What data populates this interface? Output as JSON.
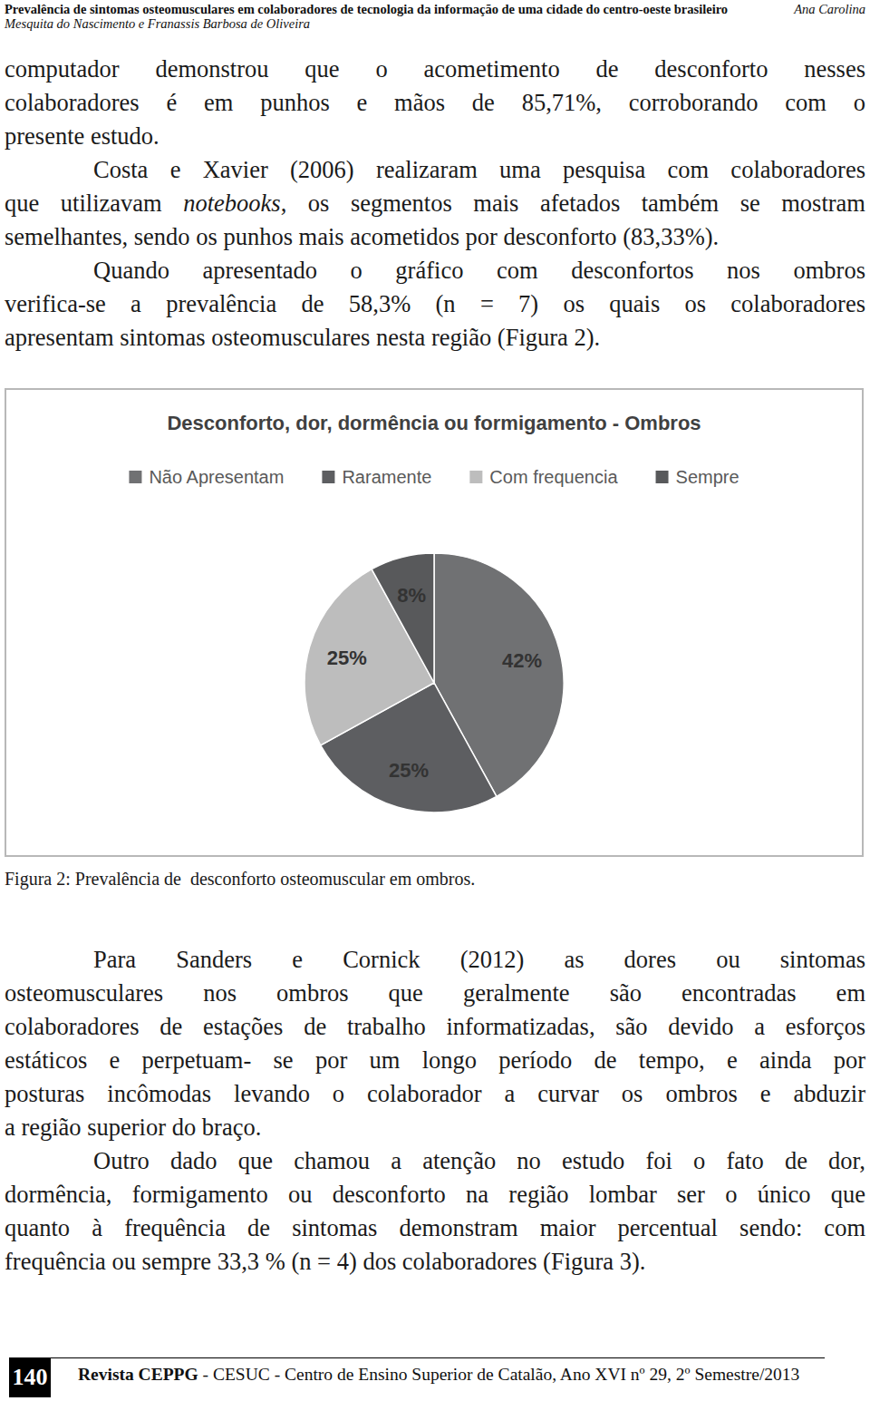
{
  "header": {
    "title": "Prevalência de sintomas osteomusculares em colaboradores de tecnologia da informação de uma cidade do centro-oeste brasileiro",
    "authors": "Mesquita do Nascimento e Franassis Barbosa de Oliveira",
    "author_right": "Ana Carolina"
  },
  "body_top": [
    {
      "indent": false,
      "lines": [
        "computador demonstrou que o acometimento de desconforto nesses",
        "colaboradores é em punhos e mãos de 85,71%, corroborando com o",
        "presente estudo."
      ]
    },
    {
      "indent": true,
      "lines": [
        "Costa e Xavier (2006) realizaram uma pesquisa com colaboradores",
        [
          {
            "text": "que utilizavam "
          },
          {
            "text": "notebooks",
            "style": "italic"
          },
          {
            "text": ", os segmentos mais afetados também se mostram"
          }
        ],
        "semelhantes, sendo os punhos mais acometidos por desconforto (83,33%)."
      ]
    },
    {
      "indent": true,
      "lines": [
        "Quando apresentado o gráfico com desconfortos nos ombros",
        "verifica-se a prevalência de 58,3% (n = 7) os quais os colaboradores",
        "apresentam sintomas osteomusculares nesta região (Figura 2)."
      ]
    }
  ],
  "chart_data": {
    "type": "pie",
    "title": "Desconforto, dor, dormência ou formigamento - Ombros",
    "categories": [
      "Não Apresentam",
      "Raramente",
      "Com frequencia",
      "Sempre"
    ],
    "values": [
      42,
      25,
      25,
      8
    ],
    "value_labels": [
      "42%",
      "25%",
      "25%",
      "8%"
    ],
    "colors": [
      "#707173",
      "#5d5e61",
      "#bdbdbd",
      "#58595b"
    ],
    "legend": "top",
    "data_labels": true
  },
  "caption": "Figura 2: Prevalência de  desconforto osteomuscular em ombros.",
  "body_bottom": [
    {
      "indent": true,
      "lines": [
        "Para Sanders e Cornick (2012) as dores ou sintomas",
        "osteomusculares nos ombros que geralmente são encontradas em",
        "colaboradores de estações de trabalho informatizadas, são devido a esforços",
        "estáticos e perpetuam- se por um longo período de tempo, e ainda por",
        "posturas incômodas levando o colaborador a curvar os ombros e abduzir",
        "a região superior do braço."
      ]
    },
    {
      "indent": true,
      "lines": [
        "Outro dado que chamou a atenção no estudo foi o fato de dor,",
        "dormência, formigamento ou desconforto na região lombar ser o único que",
        "quanto à frequência de sintomas demonstram maior percentual sendo: com",
        "frequência ou sempre 33,3 % (n = 4) dos colaboradores (Figura 3)."
      ]
    }
  ],
  "footer": {
    "page": "140",
    "text": [
      {
        "text": "Revista CEPPG",
        "style": "bold"
      },
      {
        "text": " - CESUC - Centro de Ensino Superior de Catalão, Ano XVI nº 29, 2º Semestre/2013"
      }
    ]
  }
}
